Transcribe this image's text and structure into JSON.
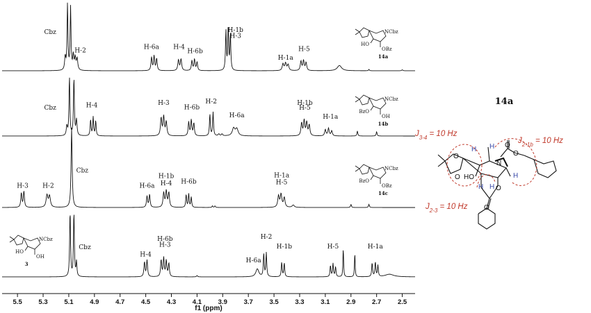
{
  "chart_data": {
    "type": "line",
    "xlabel": "f1 (ppm)",
    "xlim": [
      5.62,
      2.4
    ],
    "x_ticks": [
      5.5,
      5.3,
      5.1,
      4.9,
      4.7,
      4.5,
      4.3,
      4.1,
      3.9,
      3.7,
      3.5,
      3.3,
      3.1,
      2.9,
      2.7,
      2.5
    ],
    "y_axis": "hidden",
    "spectra": [
      {
        "compound": "14a",
        "peaks": [
          {
            "ppm": 5.11,
            "h": 1.0,
            "w": 0.004
          },
          {
            "ppm": 5.086,
            "h": 0.95,
            "w": 0.004
          },
          {
            "ppm": 5.128,
            "h": 0.2,
            "w": 0.005
          },
          {
            "ppm": 5.065,
            "h": 0.22,
            "w": 0.005
          },
          {
            "ppm": 5.05,
            "h": 0.18,
            "w": 0.006
          },
          {
            "ppm": 5.035,
            "h": 0.17,
            "w": 0.006
          },
          {
            "ppm": 4.455,
            "h": 0.2,
            "w": 0.005
          },
          {
            "ppm": 4.435,
            "h": 0.22,
            "w": 0.005
          },
          {
            "ppm": 4.415,
            "h": 0.18,
            "w": 0.005
          },
          {
            "ppm": 4.245,
            "h": 0.16,
            "w": 0.006
          },
          {
            "ppm": 4.225,
            "h": 0.17,
            "w": 0.006
          },
          {
            "ppm": 4.14,
            "h": 0.15,
            "w": 0.005
          },
          {
            "ppm": 4.12,
            "h": 0.17,
            "w": 0.005
          },
          {
            "ppm": 4.1,
            "h": 0.13,
            "w": 0.005
          },
          {
            "ppm": 3.875,
            "h": 0.6,
            "w": 0.004
          },
          {
            "ppm": 3.857,
            "h": 0.66,
            "w": 0.004
          },
          {
            "ppm": 3.84,
            "h": 0.55,
            "w": 0.004
          },
          {
            "ppm": 3.43,
            "h": 0.1,
            "w": 0.007
          },
          {
            "ppm": 3.41,
            "h": 0.11,
            "w": 0.007
          },
          {
            "ppm": 3.39,
            "h": 0.09,
            "w": 0.007
          },
          {
            "ppm": 3.29,
            "h": 0.14,
            "w": 0.006
          },
          {
            "ppm": 3.27,
            "h": 0.15,
            "w": 0.006
          },
          {
            "ppm": 3.25,
            "h": 0.12,
            "w": 0.006
          },
          {
            "ppm": 2.99,
            "h": 0.08,
            "w": 0.02
          },
          {
            "ppm": 2.76,
            "h": 0.02,
            "w": 0.004
          },
          {
            "ppm": 2.5,
            "h": 0.015,
            "w": 0.005
          }
        ],
        "labels": [
          {
            "text": "Cbz",
            "ppm": 5.245,
            "h": 0.56
          },
          {
            "text": "H-2",
            "ppm": 5.01,
            "h": 0.28
          },
          {
            "text": "H-6a",
            "ppm": 4.455,
            "h": 0.33
          },
          {
            "text": "H-4",
            "ppm": 4.24,
            "h": 0.33
          },
          {
            "text": "H-6b",
            "ppm": 4.115,
            "h": 0.27
          },
          {
            "text": "H-1b",
            "ppm": 3.8,
            "h": 0.59
          },
          {
            "text": "H-3",
            "ppm": 3.8,
            "h": 0.5
          },
          {
            "text": "H-1a",
            "ppm": 3.41,
            "h": 0.17
          },
          {
            "text": "H-5",
            "ppm": 3.265,
            "h": 0.3
          }
        ]
      },
      {
        "compound": "14b",
        "peaks": [
          {
            "ppm": 5.095,
            "h": 0.95,
            "w": 0.004
          },
          {
            "ppm": 5.06,
            "h": 0.93,
            "w": 0.004
          },
          {
            "ppm": 5.115,
            "h": 0.15,
            "w": 0.005
          },
          {
            "ppm": 5.04,
            "h": 0.25,
            "w": 0.005
          },
          {
            "ppm": 4.93,
            "h": 0.26,
            "w": 0.004
          },
          {
            "ppm": 4.91,
            "h": 0.3,
            "w": 0.004
          },
          {
            "ppm": 4.89,
            "h": 0.24,
            "w": 0.004
          },
          {
            "ppm": 4.38,
            "h": 0.28,
            "w": 0.006
          },
          {
            "ppm": 4.36,
            "h": 0.3,
            "w": 0.006
          },
          {
            "ppm": 4.34,
            "h": 0.22,
            "w": 0.006
          },
          {
            "ppm": 4.165,
            "h": 0.22,
            "w": 0.005
          },
          {
            "ppm": 4.145,
            "h": 0.25,
            "w": 0.005
          },
          {
            "ppm": 4.125,
            "h": 0.2,
            "w": 0.005
          },
          {
            "ppm": 4.0,
            "h": 0.35,
            "w": 0.004
          },
          {
            "ppm": 3.975,
            "h": 0.38,
            "w": 0.004
          },
          {
            "ppm": 3.93,
            "h": 0.03,
            "w": 0.006
          },
          {
            "ppm": 3.905,
            "h": 0.03,
            "w": 0.006
          },
          {
            "ppm": 3.815,
            "h": 0.12,
            "w": 0.012
          },
          {
            "ppm": 3.79,
            "h": 0.11,
            "w": 0.012
          },
          {
            "ppm": 3.285,
            "h": 0.2,
            "w": 0.006
          },
          {
            "ppm": 3.265,
            "h": 0.24,
            "w": 0.006
          },
          {
            "ppm": 3.245,
            "h": 0.21,
            "w": 0.006
          },
          {
            "ppm": 3.225,
            "h": 0.17,
            "w": 0.006
          },
          {
            "ppm": 3.1,
            "h": 0.1,
            "w": 0.006
          },
          {
            "ppm": 3.075,
            "h": 0.12,
            "w": 0.006
          },
          {
            "ppm": 3.05,
            "h": 0.08,
            "w": 0.006
          },
          {
            "ppm": 2.85,
            "h": 0.08,
            "w": 0.004
          },
          {
            "ppm": 2.7,
            "h": 0.07,
            "w": 0.004
          }
        ],
        "labels": [
          {
            "text": "Cbz",
            "ppm": 5.245,
            "h": 0.42
          },
          {
            "text": "H-4",
            "ppm": 4.92,
            "h": 0.46
          },
          {
            "text": "H-3",
            "ppm": 4.36,
            "h": 0.5
          },
          {
            "text": "H-6b",
            "ppm": 4.14,
            "h": 0.43
          },
          {
            "text": "H-2",
            "ppm": 3.99,
            "h": 0.52
          },
          {
            "text": "H-6a",
            "ppm": 3.79,
            "h": 0.3
          },
          {
            "text": "H-1b",
            "ppm": 3.26,
            "h": 0.5
          },
          {
            "text": "H-5",
            "ppm": 3.26,
            "h": 0.42
          },
          {
            "text": "H-1a",
            "ppm": 3.06,
            "h": 0.28
          }
        ]
      },
      {
        "compound": "14c",
        "peaks": [
          {
            "ppm": 5.078,
            "h": 1.0,
            "w": 0.005
          },
          {
            "ppm": 5.47,
            "h": 0.18,
            "w": 0.005
          },
          {
            "ppm": 5.45,
            "h": 0.2,
            "w": 0.005
          },
          {
            "ppm": 5.27,
            "h": 0.15,
            "w": 0.008
          },
          {
            "ppm": 5.25,
            "h": 0.14,
            "w": 0.008
          },
          {
            "ppm": 4.49,
            "h": 0.14,
            "w": 0.005
          },
          {
            "ppm": 4.47,
            "h": 0.16,
            "w": 0.005
          },
          {
            "ppm": 4.36,
            "h": 0.18,
            "w": 0.006
          },
          {
            "ppm": 4.34,
            "h": 0.2,
            "w": 0.006
          },
          {
            "ppm": 4.32,
            "h": 0.18,
            "w": 0.006
          },
          {
            "ppm": 4.185,
            "h": 0.16,
            "w": 0.004
          },
          {
            "ppm": 4.165,
            "h": 0.17,
            "w": 0.004
          },
          {
            "ppm": 4.145,
            "h": 0.13,
            "w": 0.004
          },
          {
            "ppm": 3.98,
            "h": 0.02,
            "w": 0.004
          },
          {
            "ppm": 3.96,
            "h": 0.02,
            "w": 0.004
          },
          {
            "ppm": 3.465,
            "h": 0.14,
            "w": 0.007
          },
          {
            "ppm": 3.445,
            "h": 0.16,
            "w": 0.007
          },
          {
            "ppm": 3.42,
            "h": 0.12,
            "w": 0.007
          },
          {
            "ppm": 3.35,
            "h": 0.03,
            "w": 0.01
          },
          {
            "ppm": 2.9,
            "h": 0.04,
            "w": 0.004
          },
          {
            "ppm": 2.76,
            "h": 0.04,
            "w": 0.004
          }
        ],
        "labels": [
          {
            "text": "H-3",
            "ppm": 5.46,
            "h": 0.25
          },
          {
            "text": "H-2",
            "ppm": 5.26,
            "h": 0.25
          },
          {
            "text": "Cbz",
            "ppm": 4.995,
            "h": 0.44
          },
          {
            "text": "H-6a",
            "ppm": 4.49,
            "h": 0.25
          },
          {
            "text": "H-1b",
            "ppm": 4.34,
            "h": 0.37
          },
          {
            "text": "H-4",
            "ppm": 4.34,
            "h": 0.28
          },
          {
            "text": "H-6b",
            "ppm": 4.165,
            "h": 0.3
          },
          {
            "text": "H-1a",
            "ppm": 3.44,
            "h": 0.38
          },
          {
            "text": "H-5",
            "ppm": 3.44,
            "h": 0.29
          }
        ]
      },
      {
        "compound": "3",
        "peaks": [
          {
            "ppm": 5.09,
            "h": 1.0,
            "w": 0.004
          },
          {
            "ppm": 5.06,
            "h": 0.98,
            "w": 0.004
          },
          {
            "ppm": 5.04,
            "h": 0.22,
            "w": 0.004
          },
          {
            "ppm": 4.51,
            "h": 0.22,
            "w": 0.005
          },
          {
            "ppm": 4.49,
            "h": 0.25,
            "w": 0.005
          },
          {
            "ppm": 4.38,
            "h": 0.25,
            "w": 0.005
          },
          {
            "ppm": 4.36,
            "h": 0.28,
            "w": 0.005
          },
          {
            "ppm": 4.34,
            "h": 0.24,
            "w": 0.005
          },
          {
            "ppm": 4.32,
            "h": 0.2,
            "w": 0.005
          },
          {
            "ppm": 4.1,
            "h": 0.02,
            "w": 0.005
          },
          {
            "ppm": 3.63,
            "h": 0.12,
            "w": 0.014
          },
          {
            "ppm": 3.58,
            "h": 0.35,
            "w": 0.004
          },
          {
            "ppm": 3.56,
            "h": 0.36,
            "w": 0.004
          },
          {
            "ppm": 3.44,
            "h": 0.22,
            "w": 0.004
          },
          {
            "ppm": 3.42,
            "h": 0.21,
            "w": 0.004
          },
          {
            "ppm": 3.06,
            "h": 0.17,
            "w": 0.004
          },
          {
            "ppm": 3.04,
            "h": 0.2,
            "w": 0.004
          },
          {
            "ppm": 3.02,
            "h": 0.15,
            "w": 0.004
          },
          {
            "ppm": 2.96,
            "h": 0.45,
            "w": 0.003
          },
          {
            "ppm": 2.87,
            "h": 0.37,
            "w": 0.003
          },
          {
            "ppm": 2.735,
            "h": 0.21,
            "w": 0.004
          },
          {
            "ppm": 2.71,
            "h": 0.22,
            "w": 0.004
          },
          {
            "ppm": 2.69,
            "h": 0.17,
            "w": 0.004
          },
          {
            "ppm": 2.6,
            "h": 0.04,
            "w": 0.04
          }
        ],
        "labels": [
          {
            "text": "Cbz",
            "ppm": 4.975,
            "h": 0.42
          },
          {
            "text": "H-6b",
            "ppm": 4.35,
            "h": 0.55
          },
          {
            "text": "H-3",
            "ppm": 4.35,
            "h": 0.46
          },
          {
            "text": "H-4",
            "ppm": 4.5,
            "h": 0.31
          },
          {
            "text": "H-2",
            "ppm": 3.56,
            "h": 0.58
          },
          {
            "text": "H-6a",
            "ppm": 3.66,
            "h": 0.22
          },
          {
            "text": "H-1b",
            "ppm": 3.42,
            "h": 0.43
          },
          {
            "text": "H-5",
            "ppm": 3.04,
            "h": 0.43
          },
          {
            "text": "H-1a",
            "ppm": 2.71,
            "h": 0.43
          }
        ]
      }
    ]
  },
  "structures": [
    {
      "id": "14a",
      "r3": "HO",
      "r2": "OBz",
      "n": "NCbz"
    },
    {
      "id": "14b",
      "r3": "BzO",
      "r2": "OH",
      "n": "NCbz"
    },
    {
      "id": "14c",
      "r3": "BzO",
      "r2": "OBz",
      "n": "NCbz"
    },
    {
      "id": "3",
      "r3": "HO",
      "r2": "OH",
      "n": "NCbz"
    }
  ],
  "conformer": {
    "title": "14a",
    "j34": "J3-4 = 10 Hz",
    "j21b": "J2-1b = 10 Hz",
    "j23": "J2-3 = 10 Hz",
    "j34_main": "J",
    "j34_sub": "3-4",
    "j34_rest": " = 10 Hz",
    "j21b_main": "J",
    "j21b_sub": "2-1b",
    "j21b_rest": " = 10 Hz",
    "j23_main": "J",
    "j23_sub": "2-3",
    "j23_rest": " = 10 Hz",
    "atoms": {
      "o": "O",
      "n": "N",
      "h": "H",
      "ho": "HO"
    },
    "colors": {
      "coupling": "#c0392b",
      "hydrogen": "#3b4aa8"
    }
  }
}
